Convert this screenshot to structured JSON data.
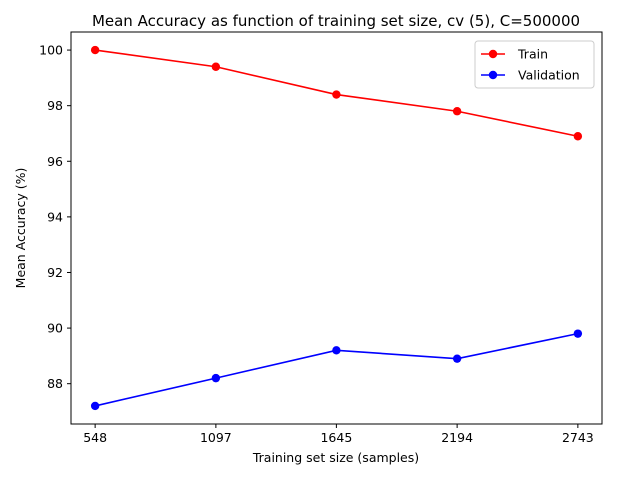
{
  "chart_data": {
    "type": "line",
    "title": "Mean Accuracy as function of training set size, cv (5), C=500000",
    "xlabel": "Training set size (samples)",
    "ylabel": "Mean Accuracy (%)",
    "x": [
      548,
      1097,
      1645,
      2194,
      2743
    ],
    "x_tick_labels": [
      "548",
      "1097",
      "1645",
      "2194",
      "2743"
    ],
    "y_ticks": [
      88,
      90,
      92,
      94,
      96,
      98,
      100
    ],
    "y_tick_labels": [
      "88",
      "90",
      "92",
      "94",
      "96",
      "98",
      "100"
    ],
    "ylim": [
      86.55,
      100.65
    ],
    "grid": false,
    "legend_position": "top-right",
    "series": [
      {
        "name": "Train",
        "color": "#ff0000",
        "values": [
          100.0,
          99.4,
          98.4,
          97.8,
          96.9
        ]
      },
      {
        "name": "Validation",
        "color": "#0000ff",
        "values": [
          87.2,
          88.2,
          89.2,
          88.9,
          89.8
        ]
      }
    ]
  }
}
